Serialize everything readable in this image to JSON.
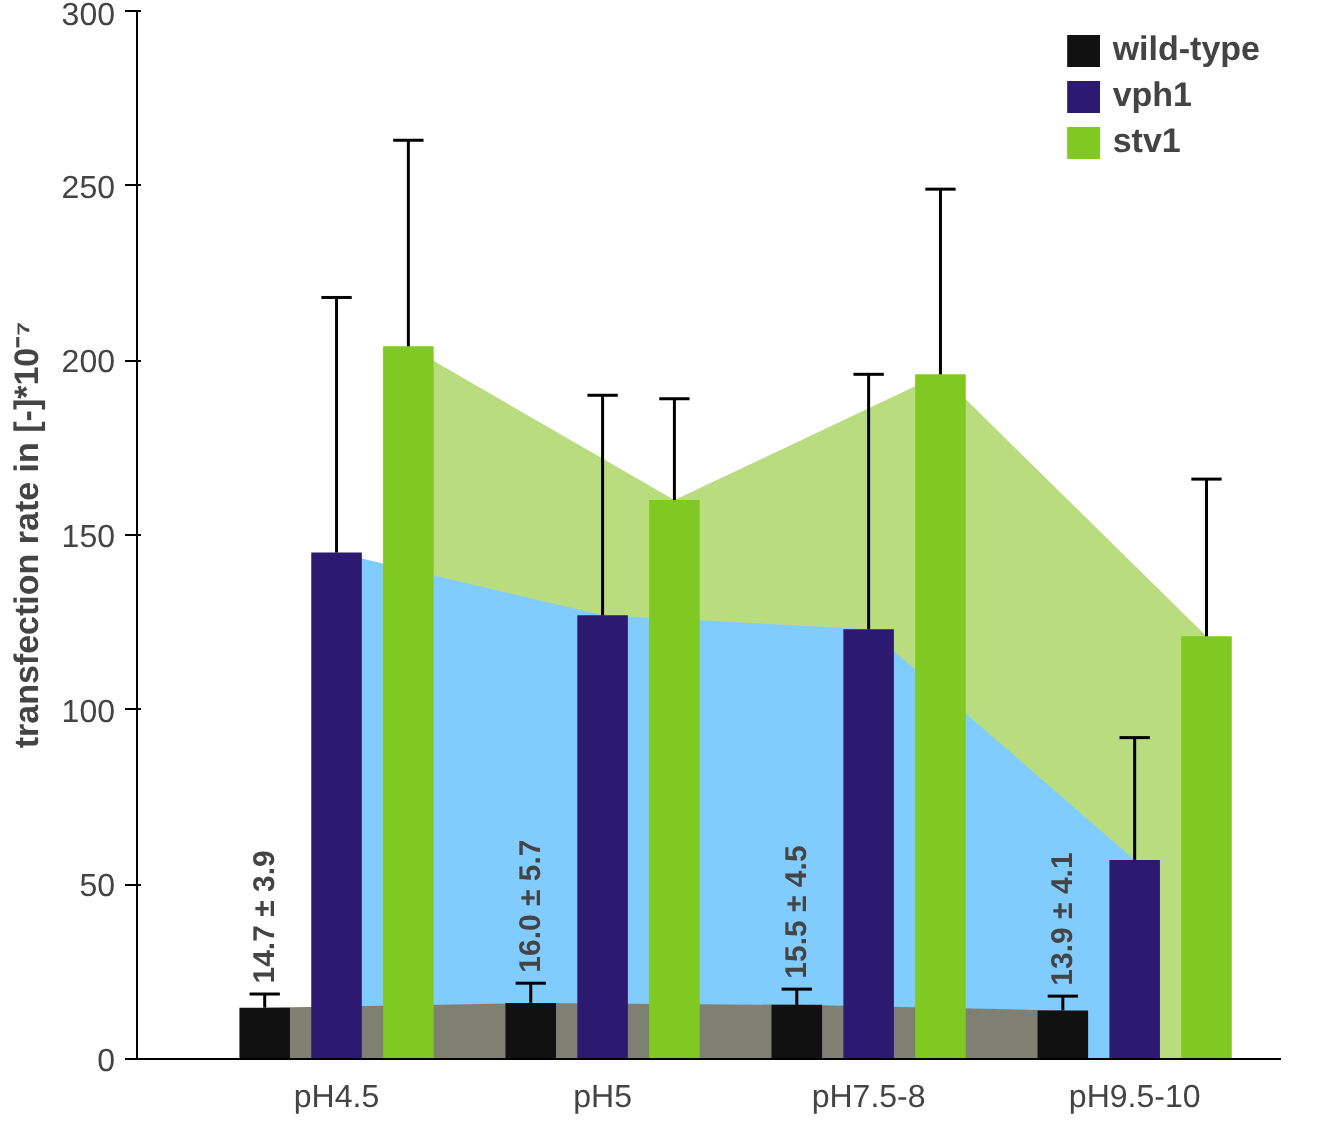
{
  "chart_data": {
    "type": "bar",
    "ylabel": "transfection rate in [-]*10⁻⁷",
    "categories": [
      "pH4.5",
      "pH5",
      "pH7.5-8",
      "pH9.5-10"
    ],
    "series": [
      {
        "type": "area",
        "color": "#b9dc7e",
        "values": [
          204,
          160,
          196,
          121
        ]
      },
      {
        "type": "area",
        "color": "#80ccff",
        "values": [
          145,
          127,
          123,
          57
        ]
      },
      {
        "type": "area",
        "color": "#7f7f72",
        "values": [
          14.7,
          16.0,
          15.5,
          13.9
        ]
      },
      {
        "name": "wild-type",
        "color": "#111111",
        "values": [
          14.7,
          16.0,
          15.5,
          13.9
        ],
        "errors": [
          [
            14.7,
            18.6
          ],
          [
            16.0,
            21.7
          ],
          [
            15.5,
            20.0
          ],
          [
            13.9,
            18.0
          ]
        ],
        "value_labels": [
          "14.7 ± 3.9",
          "16.0 ± 5.7",
          "15.5 ± 4.5",
          "13.9 ± 4.1"
        ]
      },
      {
        "name": "vph1",
        "color": "#2b1a70",
        "values": [
          145,
          127,
          123,
          57
        ],
        "errors": [
          [
            145,
            218
          ],
          [
            127,
            190
          ],
          [
            123,
            196
          ],
          [
            57,
            92
          ]
        ]
      },
      {
        "name": "stv1",
        "color": "#80c822",
        "values": [
          204,
          160,
          196,
          121
        ],
        "errors": [
          [
            204,
            263
          ],
          [
            160,
            189
          ],
          [
            196,
            249
          ],
          [
            121,
            166
          ]
        ]
      }
    ],
    "ylim": [
      0,
      300
    ],
    "yticks": [
      0,
      50,
      100,
      150,
      200,
      250,
      300
    ],
    "legend": "top right",
    "grid": false
  }
}
